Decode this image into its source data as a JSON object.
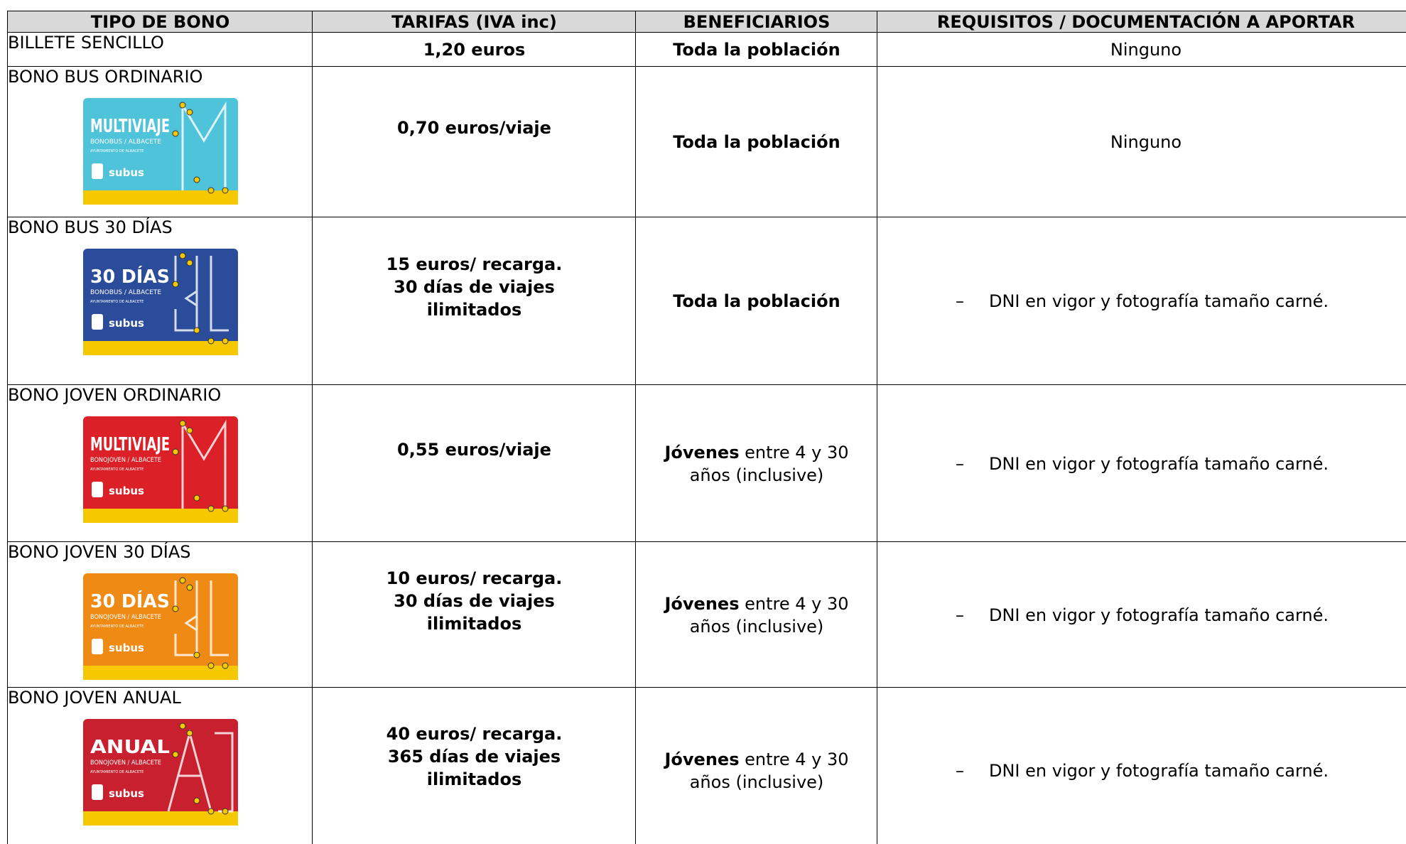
{
  "table": {
    "headers": [
      "TIPO DE BONO",
      "TARIFAS (IVA inc)",
      "BENEFICIARIOS",
      "REQUISITOS / DOCUMENTACIÓN A APORTAR"
    ],
    "rows": [
      {
        "tipo": "BILLETE SENCILLO",
        "tarifa": [
          "1,20 euros"
        ],
        "beneficiarios": {
          "bold": "Toda la población"
        },
        "requisitos": {
          "text": "Ninguno"
        }
      },
      {
        "tipo": "BONO BUS ORDINARIO",
        "card": {
          "title": "MULTIVIAJE",
          "subtitle": "BONOBUS / ALBACETE",
          "footer": "AYUNTAMIENTO DE ALBACETE",
          "brand": "subus",
          "color": "#4fc3d9",
          "style": "M"
        },
        "tarifa": [
          "0,70 euros/viaje"
        ],
        "beneficiarios": {
          "bold": "Toda la población"
        },
        "requisitos": {
          "text": "Ninguno"
        }
      },
      {
        "tipo": "BONO BUS 30 DÍAS",
        "card": {
          "title": "30 DÍAS",
          "subtitle": "BONOBUS / ALBACETE",
          "footer": "AYUNTAMIENTO DE ALBACETE",
          "brand": "subus",
          "color": "#2b4b9b",
          "style": "30"
        },
        "tarifa": [
          "15 euros/ recarga.",
          "30 días de viajes",
          "ilimitados"
        ],
        "beneficiarios": {
          "bold": "Toda la población"
        },
        "requisitos": {
          "bullet": "–",
          "text": "DNI en vigor y fotografía tamaño carné."
        }
      },
      {
        "tipo": "BONO JOVEN ORDINARIO",
        "card": {
          "title": "MULTIVIAJE",
          "subtitle": "BONOJOVEN / ALBACETE",
          "footer": "AYUNTAMIENTO DE ALBACETE",
          "brand": "subus",
          "color": "#dc2027",
          "style": "M"
        },
        "tarifa": [
          "0,55 euros/viaje"
        ],
        "beneficiarios": {
          "bold": "Jóvenes",
          "text": "entre 4 y 30 años (inclusive)"
        },
        "requisitos": {
          "bullet": "–",
          "text": "DNI en vigor y fotografía tamaño carné."
        }
      },
      {
        "tipo": "BONO JOVEN 30 DÍAS",
        "card": {
          "title": "30 DÍAS",
          "subtitle": "BONOJOVEN / ALBACETE",
          "footer": "AYUNTAMIENTO DE ALBACETE",
          "brand": "subus",
          "color": "#ef8a14",
          "style": "30"
        },
        "tarifa": [
          "10 euros/ recarga.",
          "30 días de viajes",
          "ilimitados"
        ],
        "beneficiarios": {
          "bold": "Jóvenes",
          "text": "entre 4 y 30 años (inclusive)"
        },
        "requisitos": {
          "bullet": "–",
          "text": "DNI en vigor y fotografía tamaño carné."
        }
      },
      {
        "tipo": "BONO JOVEN ANUAL",
        "card": {
          "title": "ANUAL",
          "subtitle": "BONOJOVEN / ALBACETE",
          "footer": "AYUNTAMIENTO DE ALBACETE",
          "brand": "subus",
          "color": "#c8202e",
          "style": "A"
        },
        "tarifa": [
          "40 euros/ recarga.",
          "365 días de viajes",
          "ilimitados"
        ],
        "beneficiarios": {
          "bold": "Jóvenes",
          "text": "entre 4 y 30 años (inclusive)"
        },
        "requisitos": {
          "bullet": "–",
          "text": "DNI en vigor y fotografía tamaño carné."
        }
      }
    ]
  }
}
